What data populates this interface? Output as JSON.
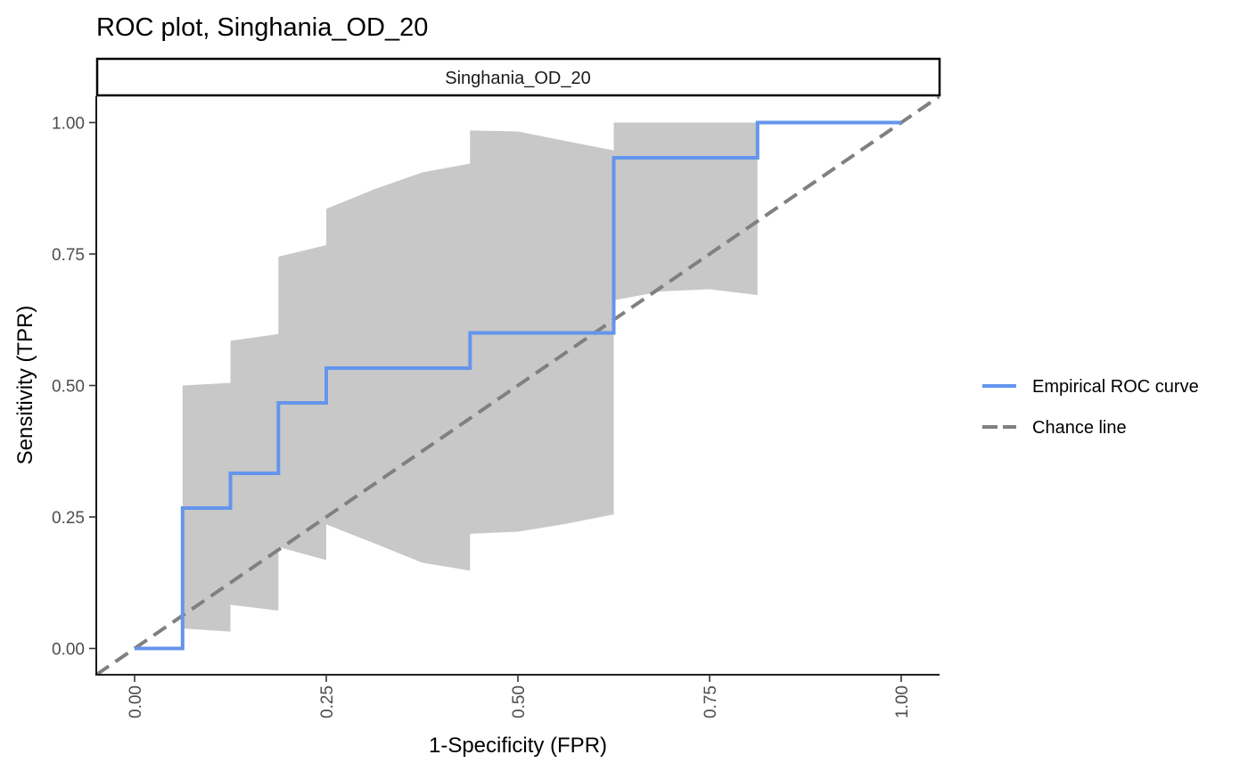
{
  "chart_data": {
    "type": "line",
    "title": "ROC plot, Singhania_OD_20",
    "facet_label": "Singhania_OD_20",
    "xlabel": "1-Specificity (FPR)",
    "ylabel": "Sensitivity (TPR)",
    "xlim": [
      -0.05,
      1.05
    ],
    "ylim": [
      -0.05,
      1.05
    ],
    "x_ticks": [
      0,
      0.25,
      0.5,
      0.75,
      1
    ],
    "x_tick_labels": [
      "0.00",
      "0.25",
      "0.50",
      "0.75",
      "1.00"
    ],
    "y_ticks": [
      0,
      0.25,
      0.5,
      0.75,
      1
    ],
    "y_tick_labels": [
      "0.00",
      "0.25",
      "0.50",
      "0.75",
      "1.00"
    ],
    "grid": false,
    "legend_position": "right",
    "confidence_band": {
      "color": "#c8c8c8",
      "upper": [
        [
          0.0625,
          0.5
        ],
        [
          0.125,
          0.505
        ],
        [
          0.125,
          0.585
        ],
        [
          0.1875,
          0.598
        ],
        [
          0.1875,
          0.745
        ],
        [
          0.25,
          0.767
        ],
        [
          0.25,
          0.836
        ],
        [
          0.3125,
          0.873
        ],
        [
          0.375,
          0.905
        ],
        [
          0.4375,
          0.922
        ],
        [
          0.4375,
          0.985
        ],
        [
          0.5,
          0.983
        ],
        [
          0.5625,
          0.965
        ],
        [
          0.625,
          0.947
        ],
        [
          0.625,
          1.0
        ],
        [
          0.8125,
          1.0
        ]
      ],
      "lower": [
        [
          0.8125,
          0.672
        ],
        [
          0.75,
          0.683
        ],
        [
          0.6875,
          0.679
        ],
        [
          0.625,
          0.662
        ],
        [
          0.625,
          0.255
        ],
        [
          0.5625,
          0.237
        ],
        [
          0.5,
          0.222
        ],
        [
          0.4375,
          0.218
        ],
        [
          0.4375,
          0.148
        ],
        [
          0.375,
          0.163
        ],
        [
          0.3125,
          0.2
        ],
        [
          0.25,
          0.236
        ],
        [
          0.25,
          0.168
        ],
        [
          0.1875,
          0.193
        ],
        [
          0.1875,
          0.072
        ],
        [
          0.125,
          0.083
        ],
        [
          0.125,
          0.032
        ],
        [
          0.0625,
          0.038
        ]
      ]
    },
    "series": [
      {
        "name": "Empirical ROC curve",
        "color": "#6495ED",
        "style": "solid",
        "points": [
          [
            0,
            0
          ],
          [
            0.0625,
            0
          ],
          [
            0.0625,
            0.267
          ],
          [
            0.125,
            0.267
          ],
          [
            0.125,
            0.333
          ],
          [
            0.1875,
            0.333
          ],
          [
            0.1875,
            0.467
          ],
          [
            0.25,
            0.467
          ],
          [
            0.25,
            0.533
          ],
          [
            0.4375,
            0.533
          ],
          [
            0.4375,
            0.6
          ],
          [
            0.625,
            0.6
          ],
          [
            0.625,
            0.933
          ],
          [
            0.8125,
            0.933
          ],
          [
            0.8125,
            1.0
          ],
          [
            1.0,
            1.0
          ]
        ]
      },
      {
        "name": "Chance line",
        "color": "#808080",
        "style": "dashed",
        "points": [
          [
            -0.05,
            -0.05
          ],
          [
            1.05,
            1.05
          ]
        ]
      }
    ]
  }
}
